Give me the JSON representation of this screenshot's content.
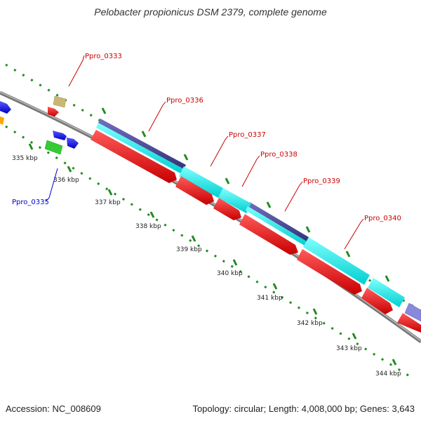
{
  "title": "Pelobacter propionicus DSM 2379, complete genome",
  "accession": "Accession: NC_008609",
  "summary": "Topology: circular; Length: 4,008,000 bp; Genes: 3,643",
  "ticks": [
    "335 kbp",
    "336 kbp",
    "337 kbp",
    "338 kbp",
    "339 kbp",
    "340 kbp",
    "341 kbp",
    "342 kbp",
    "343 kbp",
    "344 kbp"
  ],
  "gene_labels": [
    {
      "text": "Ppro_0333",
      "color": "#cc0000"
    },
    {
      "text": "Ppro_0335",
      "color": "#0000cc"
    },
    {
      "text": "Ppro_0336",
      "color": "#cc0000"
    },
    {
      "text": "Ppro_0337",
      "color": "#cc0000"
    },
    {
      "text": "Ppro_0338",
      "color": "#cc0000"
    },
    {
      "text": "Ppro_0339",
      "color": "#cc0000"
    },
    {
      "text": "Ppro_0340",
      "color": "#cc0000"
    }
  ],
  "colors": {
    "backbone": "#888888",
    "tick": "#228b22",
    "cds_forward": "#0000ff",
    "cds_reverse": "#ff0000",
    "feature_cyan": "#00ffff",
    "feature_navy": "#4b4b9c",
    "feature_green": "#33cc33",
    "feature_tan": "#c8b873",
    "feature_orange": "#ffa500",
    "feature_violet": "#8888dd"
  }
}
